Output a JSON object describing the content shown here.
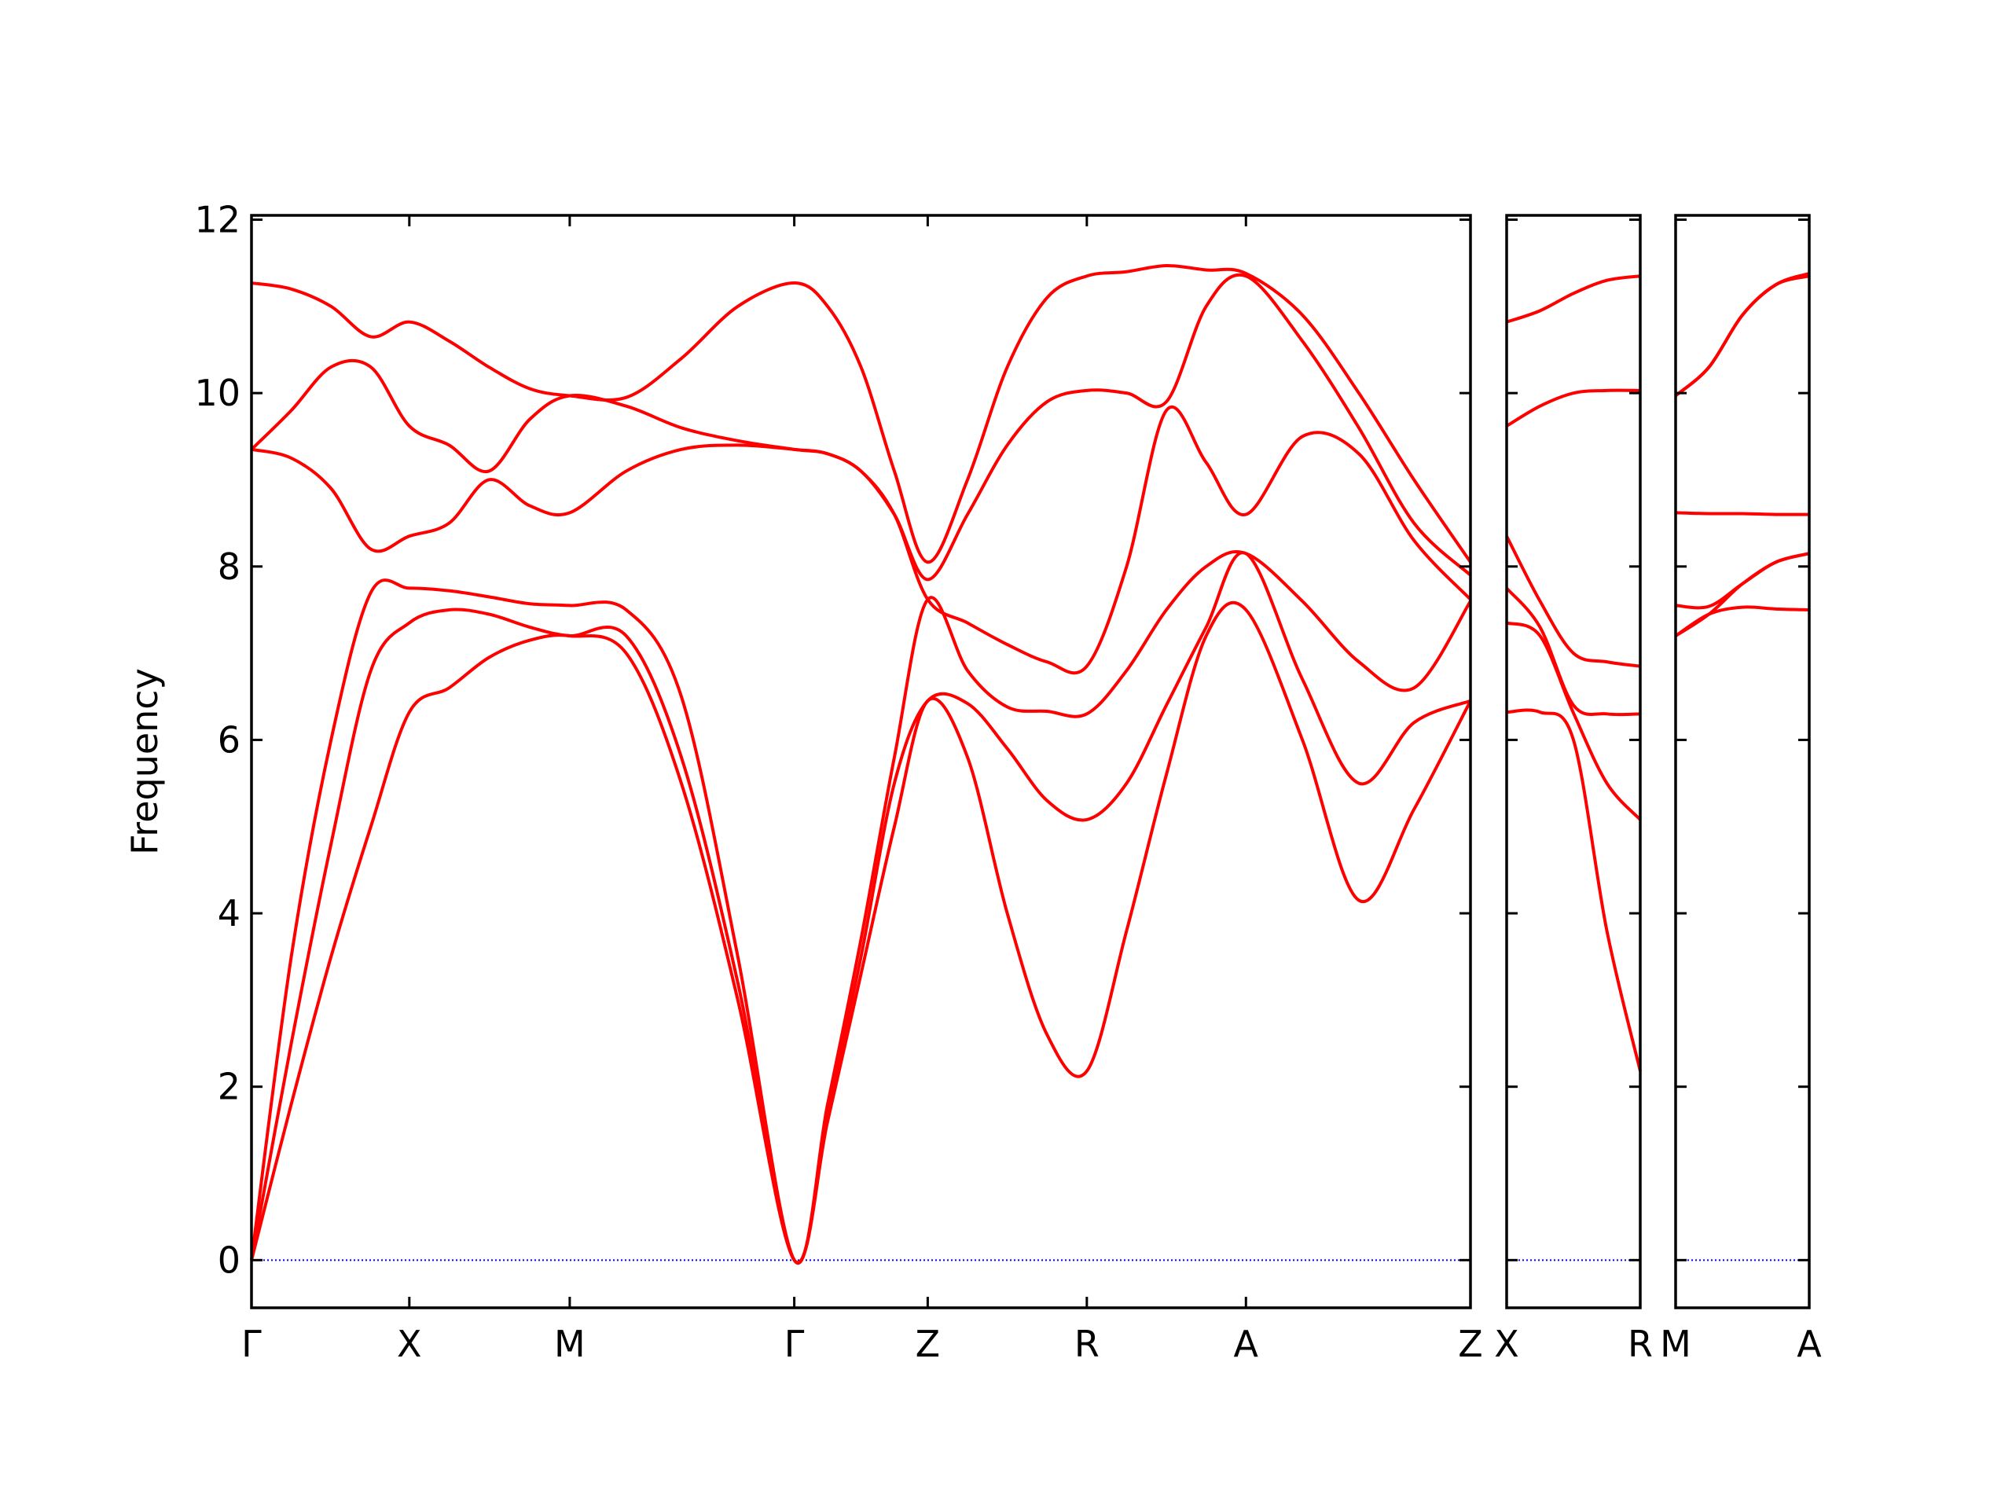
{
  "chart_data": [
    {
      "type": "line",
      "ylabel": "Frequency",
      "color": "#ff0000",
      "ytick_labels": true,
      "zero_line": {
        "y": 0,
        "color": "#0000ff",
        "style": "dotted"
      },
      "xlim": [
        0,
        9.5
      ],
      "ylim": [
        -0.55,
        12.05
      ],
      "yticks": [
        0,
        2,
        4,
        6,
        8,
        10,
        12
      ],
      "xticks": [
        {
          "value": 0,
          "label": "Γ"
        },
        {
          "value": 1.23,
          "label": "X"
        },
        {
          "value": 2.48,
          "label": "M"
        },
        {
          "value": 4.23,
          "label": "Γ"
        },
        {
          "value": 5.27,
          "label": "Z"
        },
        {
          "value": 6.51,
          "label": "R"
        },
        {
          "value": 7.75,
          "label": "A"
        },
        {
          "value": 9.5,
          "label": "Z"
        }
      ],
      "x": [
        0,
        0.31,
        0.62,
        0.93,
        1.23,
        1.54,
        1.85,
        2.17,
        2.48,
        2.92,
        3.35,
        3.79,
        4.23,
        4.49,
        4.75,
        5.01,
        5.27,
        5.58,
        5.89,
        6.2,
        6.51,
        6.82,
        7.13,
        7.44,
        7.75,
        8.19,
        8.63,
        9.06,
        9.5
      ],
      "series": [
        {
          "values": [
            0,
            1.8,
            3.5,
            5.0,
            6.32,
            6.6,
            6.95,
            7.15,
            7.2,
            7.0,
            5.5,
            3.0,
            0,
            1.6,
            3.3,
            5.0,
            6.45,
            5.8,
            4.0,
            2.6,
            2.18,
            3.8,
            5.6,
            7.2,
            7.5,
            6.0,
            4.15,
            5.2,
            6.45
          ]
        },
        {
          "values": [
            0,
            2.5,
            4.8,
            6.8,
            7.35,
            7.5,
            7.45,
            7.3,
            7.2,
            7.2,
            5.8,
            3.2,
            0,
            1.7,
            3.5,
            5.5,
            6.45,
            6.42,
            5.9,
            5.3,
            5.08,
            5.5,
            6.4,
            7.3,
            8.15,
            6.7,
            5.5,
            6.2,
            6.45
          ]
        },
        {
          "values": [
            0,
            3.5,
            6.0,
            7.7,
            7.75,
            7.72,
            7.65,
            7.57,
            7.55,
            7.5,
            6.5,
            3.5,
            0,
            1.8,
            3.7,
            5.8,
            7.62,
            6.8,
            6.38,
            6.33,
            6.3,
            6.8,
            7.5,
            8.0,
            8.15,
            7.6,
            6.9,
            6.6,
            7.6
          ]
        },
        {
          "values": [
            9.35,
            9.25,
            8.9,
            8.2,
            8.35,
            8.5,
            9.0,
            8.7,
            8.62,
            9.1,
            9.35,
            9.4,
            9.35,
            9.3,
            9.1,
            8.6,
            7.62,
            7.35,
            7.1,
            6.9,
            6.85,
            8.0,
            9.8,
            9.2,
            8.6,
            9.5,
            9.3,
            8.3,
            7.62
          ]
        },
        {
          "values": [
            9.35,
            9.8,
            10.3,
            10.3,
            9.62,
            9.4,
            9.1,
            9.7,
            9.97,
            9.85,
            9.6,
            9.45,
            9.35,
            9.3,
            9.1,
            8.6,
            7.85,
            8.6,
            9.4,
            9.9,
            10.03,
            10.0,
            9.9,
            11.0,
            11.35,
            10.6,
            9.6,
            8.5,
            7.9
          ]
        },
        {
          "values": [
            11.27,
            11.2,
            11.0,
            10.65,
            10.82,
            10.6,
            10.3,
            10.05,
            9.97,
            9.95,
            10.4,
            11.0,
            11.27,
            11.0,
            10.3,
            9.1,
            8.05,
            9.0,
            10.3,
            11.1,
            11.35,
            11.4,
            11.47,
            11.42,
            11.38,
            10.9,
            10.0,
            9.0,
            8.05
          ]
        }
      ]
    },
    {
      "type": "line",
      "color": "#ff0000",
      "ytick_labels": false,
      "zero_line": {
        "y": 0,
        "color": "#0000ff",
        "style": "dotted"
      },
      "xlim": [
        0,
        1.04
      ],
      "ylim": [
        -0.55,
        12.05
      ],
      "yticks": [
        0,
        2,
        4,
        6,
        8,
        10,
        12
      ],
      "xticks": [
        {
          "value": 0,
          "label": "X"
        },
        {
          "value": 1.04,
          "label": "R"
        }
      ],
      "x": [
        0,
        0.26,
        0.52,
        0.78,
        1.04
      ],
      "series": [
        {
          "values": [
            6.32,
            6.32,
            6.0,
            3.8,
            2.18
          ]
        },
        {
          "values": [
            7.35,
            7.2,
            6.31,
            5.5,
            5.08
          ]
        },
        {
          "values": [
            7.75,
            7.3,
            6.4,
            6.3,
            6.3
          ]
        },
        {
          "values": [
            8.35,
            7.6,
            7.0,
            6.9,
            6.85
          ]
        },
        {
          "values": [
            9.62,
            9.85,
            10.0,
            10.03,
            10.03
          ]
        },
        {
          "values": [
            10.82,
            10.95,
            11.15,
            11.3,
            11.35
          ]
        }
      ]
    },
    {
      "type": "line",
      "color": "#ff0000",
      "ytick_labels": false,
      "zero_line": {
        "y": 0,
        "color": "#0000ff",
        "style": "dotted"
      },
      "xlim": [
        0,
        1.04
      ],
      "ylim": [
        -0.55,
        12.05
      ],
      "yticks": [
        0,
        2,
        4,
        6,
        8,
        10,
        12
      ],
      "xticks": [
        {
          "value": 0,
          "label": "M"
        },
        {
          "value": 1.04,
          "label": "A"
        }
      ],
      "x": [
        0,
        0.26,
        0.52,
        0.78,
        1.04
      ],
      "series": [
        {
          "values": [
            7.2,
            7.45,
            7.53,
            7.51,
            7.5
          ]
        },
        {
          "values": [
            7.2,
            7.45,
            7.8,
            8.05,
            8.15
          ]
        },
        {
          "values": [
            7.55,
            7.54,
            7.8,
            8.05,
            8.15
          ]
        },
        {
          "values": [
            8.62,
            8.61,
            8.61,
            8.6,
            8.6
          ]
        },
        {
          "values": [
            9.97,
            10.3,
            10.9,
            11.25,
            11.35
          ]
        },
        {
          "values": [
            9.97,
            10.3,
            10.9,
            11.25,
            11.38
          ]
        }
      ]
    }
  ]
}
